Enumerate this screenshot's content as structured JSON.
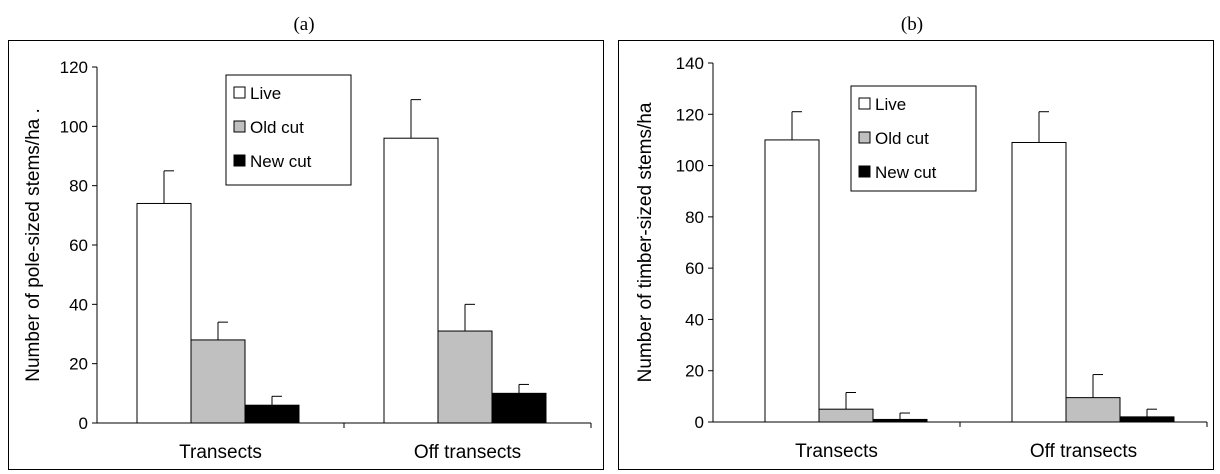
{
  "chart_data": [
    {
      "type": "bar",
      "title": "(a)",
      "xlabel": "",
      "ylabel": "Number of pole-sized stems/ha .",
      "categories": [
        "Transects",
        "Off transects"
      ],
      "ylim": [
        0,
        120
      ],
      "yticks": [
        0,
        20,
        40,
        60,
        80,
        100,
        120
      ],
      "grid": false,
      "legend_position": "top-center",
      "series": [
        {
          "name": "Live",
          "values": [
            74,
            96
          ],
          "errors": [
            11,
            13
          ],
          "color": "#ffffff"
        },
        {
          "name": "Old cut",
          "values": [
            28,
            31
          ],
          "errors": [
            6,
            9
          ],
          "color": "#c0c0c0"
        },
        {
          "name": "New cut",
          "values": [
            6,
            10
          ],
          "errors": [
            3,
            3
          ],
          "color": "#000000"
        }
      ]
    },
    {
      "type": "bar",
      "title": "(b)",
      "xlabel": "",
      "ylabel": "Number of timber-sized stems/ha",
      "categories": [
        "Transects",
        "Off transects"
      ],
      "ylim": [
        0,
        140
      ],
      "yticks": [
        0,
        20,
        40,
        60,
        80,
        100,
        120,
        140
      ],
      "grid": false,
      "legend_position": "top-center",
      "series": [
        {
          "name": "Live",
          "values": [
            110,
            109
          ],
          "errors": [
            11,
            12
          ],
          "color": "#ffffff"
        },
        {
          "name": "Old cut",
          "values": [
            5,
            9.5
          ],
          "errors": [
            6.5,
            9
          ],
          "color": "#c0c0c0"
        },
        {
          "name": "New cut",
          "values": [
            1,
            2
          ],
          "errors": [
            2.5,
            3
          ],
          "color": "#000000"
        }
      ]
    }
  ]
}
